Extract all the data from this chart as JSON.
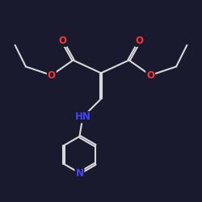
{
  "bg_color": "#1a1a2e",
  "bond_color": "#d8d8d8",
  "atom_colors": {
    "O": "#ff3333",
    "N": "#4444ff",
    "C": "#d8d8d8"
  },
  "bond_lw": 1.5,
  "font_size": 8.5
}
